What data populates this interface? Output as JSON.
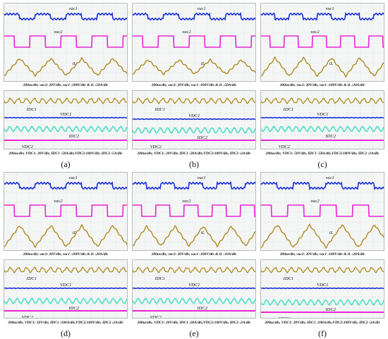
{
  "colors": {
    "vac1": "#1a2fd6",
    "vac2": "#e826d4",
    "iL": "#b08a22",
    "idc1": "#b08a22",
    "vdc1": "#1a2fd6",
    "idc2": "#18d5b0",
    "vdc2": "#e826d4",
    "grid": "#c7d0d0",
    "screen": "#f4f6f6"
  },
  "panels": [
    {
      "label": "(a)",
      "top_caption": "200us/div, vac2: 20V/div, vac1 :100V/div & iL :50A/div",
      "bottom_caption": "200us/div, VDC1: 20V/div, IDC1 :50A/div,VDC2:100V/div, IDC2 :5A/div",
      "top_labels": {
        "vac1": "vac1",
        "vac2": "vac2",
        "iL": "iL"
      },
      "bottom_labels": {
        "idc1": "IDC1",
        "vdc1": "VDC1",
        "idc2": "IDC2",
        "vdc2": "VDC2"
      }
    },
    {
      "label": "(b)",
      "top_caption": "200us/div, vac2: 20V/div, vac1 :100V/div & iL :50A/div",
      "bottom_caption": "200us/div, VDC1: 20V/div, IDC1 :20A/div,VDC2:100V/div, IDC2 :2A/div",
      "top_labels": {
        "vac1": "vac1",
        "vac2": "vac2",
        "iL": "iL"
      },
      "bottom_labels": {
        "idc1": "IDC1",
        "vdc1": "VDC1",
        "idc2": "IDC2",
        "vdc2": "VDC2"
      }
    },
    {
      "label": "(c)",
      "top_caption": "200us/div, vac2: 20V/div, vac1 :100V/div & iL :20A/div",
      "bottom_caption": "200us/div, VDC1: 50V/div, IDC1 :50A/div,VDC2:100V/div, IDC2 :2A/div",
      "top_labels": {
        "vac1": "vac1",
        "vac2": "vac2",
        "iL": "iL"
      },
      "bottom_labels": {
        "idc1": "IDC1",
        "vdc1": "VDC1",
        "idc2": "IDC2",
        "vdc2": "VDC2"
      }
    },
    {
      "label": "(d)",
      "top_caption": "200us/div, vac2: 20V/div, vac1 :100V/div & iL :20A/div",
      "bottom_caption": "200us/div, VDC1: 50V/div, IDC1 :100A/div,VDC2:100V/div, IDC2 :2A/div",
      "top_labels": {
        "vac1": "vac1",
        "vac2": "vac2",
        "iL": "iL"
      },
      "bottom_labels": {
        "idc1": "IDC1",
        "vdc1": "VDC1",
        "idc2": "IDC2",
        "vdc2": "VDC2"
      }
    },
    {
      "label": "(e)",
      "top_caption": "200us/div, vac2: 20V/div, vac1 :100V/div & iL :10A/div",
      "bottom_caption": "200us/div, VDC1: 20V/div, IDC1 :20A/div,VDC2:100V/div, IDC2 :2A/div",
      "top_labels": {
        "vac1": "vac1",
        "vac2": "vac2",
        "iL": "iL"
      },
      "bottom_labels": {
        "idc1": "IDC1",
        "vdc1": "VDC1",
        "idc2": "IDC2",
        "vdc2": "VDC2"
      }
    },
    {
      "label": "(f)",
      "top_caption": "200us/div, vac2: 20V/div, vac1 :100V/div & iL :20A/div",
      "bottom_caption": "200us/div, VDC1: 20V/div, IDC1 :100A/div,VDC2:100V/div, IDC2 :2A/div",
      "top_labels": {
        "vac1": "vac1",
        "vac2": "vac2",
        "iL": "iL"
      },
      "bottom_labels": {
        "idc1": "IDC1",
        "vdc1": "VDC1",
        "idc2": "IDC2",
        "vdc2": "VDC2"
      }
    }
  ]
}
